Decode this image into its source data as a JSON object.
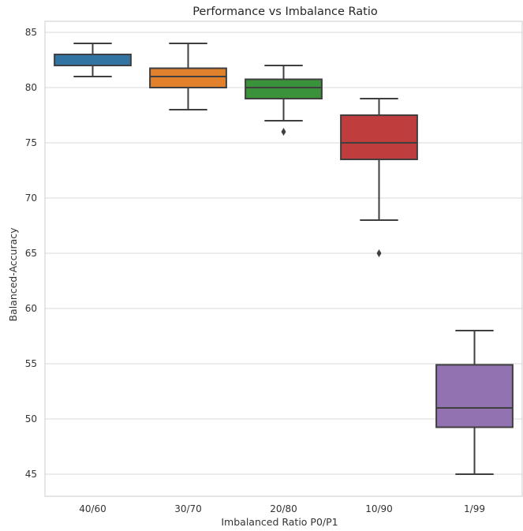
{
  "chart_data": {
    "type": "box",
    "title": "Performance vs Imbalance Ratio",
    "xlabel": "Imbalanced Ratio P0/P1",
    "ylabel": "Balanced-Accuracy",
    "ylim": [
      43,
      86
    ],
    "yticks": [
      45,
      50,
      55,
      60,
      65,
      70,
      75,
      80,
      85
    ],
    "grid": "horizontal",
    "categories": [
      "40/60",
      "30/70",
      "20/80",
      "10/90",
      "1/99"
    ],
    "boxes": [
      {
        "category": "40/60",
        "color": "#3274a1",
        "whisker_low": 81,
        "q1": 82,
        "median": 82,
        "q3": 83,
        "whisker_high": 84,
        "outliers": []
      },
      {
        "category": "30/70",
        "color": "#e1812c",
        "whisker_low": 78,
        "q1": 80,
        "median": 81,
        "q3": 81.75,
        "whisker_high": 84,
        "outliers": []
      },
      {
        "category": "20/80",
        "color": "#3a923a",
        "whisker_low": 77,
        "q1": 79,
        "median": 80,
        "q3": 80.75,
        "whisker_high": 82,
        "outliers": [
          76
        ]
      },
      {
        "category": "10/90",
        "color": "#c03d3e",
        "whisker_low": 68,
        "q1": 73.5,
        "median": 75,
        "q3": 77.5,
        "whisker_high": 79,
        "outliers": [
          65
        ]
      },
      {
        "category": "1/99",
        "color": "#9372b2",
        "whisker_low": 45,
        "q1": 49.25,
        "median": 51,
        "q3": 54.9,
        "whisker_high": 58,
        "outliers": []
      }
    ]
  }
}
